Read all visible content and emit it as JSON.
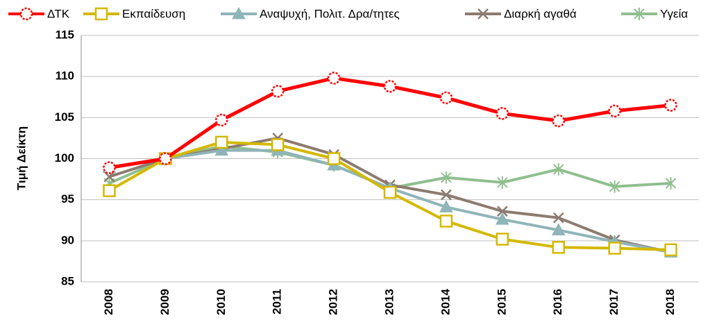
{
  "chart_data": {
    "type": "line",
    "y_label": "Τιμή Δείκτη",
    "categories": [
      "2008",
      "2009",
      "2010",
      "2011",
      "2012",
      "2013",
      "2014",
      "2015",
      "2016",
      "2017",
      "2018"
    ],
    "ylim": [
      85,
      115
    ],
    "yticks": [
      85,
      90,
      95,
      100,
      105,
      110,
      115
    ],
    "grid": true,
    "legend": "top",
    "series": [
      {
        "name": "ΔΤΚ",
        "color": "#ff0000",
        "marker": "circle",
        "values": [
          98.9,
          100,
          104.7,
          108.2,
          109.8,
          108.8,
          107.4,
          105.5,
          104.6,
          105.8,
          106.5
        ]
      },
      {
        "name": "Εκπαίδευση",
        "color": "#d4b800",
        "marker": "square",
        "values": [
          96.1,
          100,
          102,
          101.7,
          100,
          95.9,
          92.4,
          90.2,
          89.2,
          89.1,
          88.9
        ]
      },
      {
        "name": "Αναψυχή, Πολιτ. Δρα/τητες",
        "color": "#8fb5b8",
        "marker": "triangle",
        "values": [
          98.9,
          100,
          101,
          101,
          99.2,
          96.4,
          94.1,
          92.6,
          91.3,
          89.9,
          88.6
        ]
      },
      {
        "name": "Διαρκή αγαθά",
        "color": "#8c7b70",
        "marker": "x",
        "values": [
          97.8,
          100,
          101.2,
          102.5,
          100.5,
          96.8,
          95.6,
          93.6,
          92.8,
          90.1,
          88.6
        ]
      },
      {
        "name": "Υγεία",
        "color": "#8fbf8f",
        "marker": "star",
        "values": [
          97,
          100,
          101.5,
          100.8,
          99.2,
          96.4,
          97.7,
          97.1,
          98.7,
          96.6,
          97
        ]
      }
    ]
  }
}
